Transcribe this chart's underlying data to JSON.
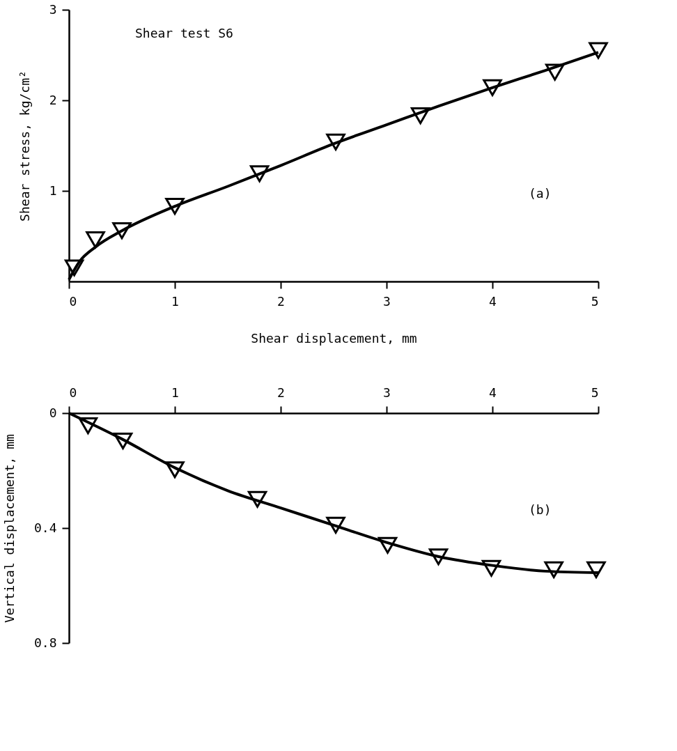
{
  "chart_data": [
    {
      "type": "scatter",
      "xlabel": "Shear displacement, mm",
      "ylabel": "Shear stress, kg/cm²",
      "xlim": [
        0,
        5
      ],
      "ylim": [
        0,
        3
      ],
      "xticks": [
        0,
        1,
        2,
        3,
        4,
        5
      ],
      "yticks": [
        1,
        2,
        3
      ],
      "grid": false,
      "annotations": [
        "Shear test S6",
        "(a)"
      ],
      "series": [
        {
          "color": "#000000",
          "marker": "triangle",
          "x": [
            0.05,
            0.25,
            0.5,
            1.0,
            1.8,
            2.52,
            3.32,
            4.0,
            4.59,
            5.0
          ],
          "values": [
            0.15,
            0.46,
            0.56,
            0.83,
            1.19,
            1.54,
            1.83,
            2.14,
            2.31,
            2.55
          ]
        },
        {
          "type": "line",
          "color": "#000000",
          "line_style": "solid",
          "x": [
            0,
            0.1,
            0.25,
            0.5,
            1,
            1.5,
            2,
            2.5,
            3,
            3.5,
            4,
            4.5,
            5
          ],
          "values": [
            0.02,
            0.22,
            0.38,
            0.56,
            0.83,
            1.05,
            1.28,
            1.52,
            1.73,
            1.94,
            2.14,
            2.33,
            2.53
          ]
        }
      ]
    },
    {
      "type": "scatter",
      "ylabel": "Vertical displacement, mm",
      "xlim": [
        0,
        5
      ],
      "ylim": [
        0.8,
        0
      ],
      "xticks": [
        0,
        1,
        2,
        3,
        4,
        5
      ],
      "yticks": [
        0,
        0.4,
        0.8
      ],
      "grid": false,
      "annotations": [
        "(b)"
      ],
      "series": [
        {
          "color": "#000000",
          "marker": "triangle",
          "x": [
            0.18,
            0.51,
            1.0,
            1.78,
            2.52,
            3.01,
            3.49,
            3.99,
            4.58,
            4.98
          ],
          "values": [
            0.044,
            0.097,
            0.197,
            0.3,
            0.39,
            0.46,
            0.5,
            0.54,
            0.545,
            0.545
          ]
        },
        {
          "type": "line",
          "color": "#000000",
          "line_style": "solid",
          "x": [
            0,
            0.5,
            1,
            1.5,
            2,
            2.5,
            3,
            3.5,
            4,
            4.5,
            5
          ],
          "values": [
            0,
            0.09,
            0.19,
            0.27,
            0.33,
            0.39,
            0.45,
            0.5,
            0.53,
            0.55,
            0.555
          ]
        }
      ]
    }
  ]
}
